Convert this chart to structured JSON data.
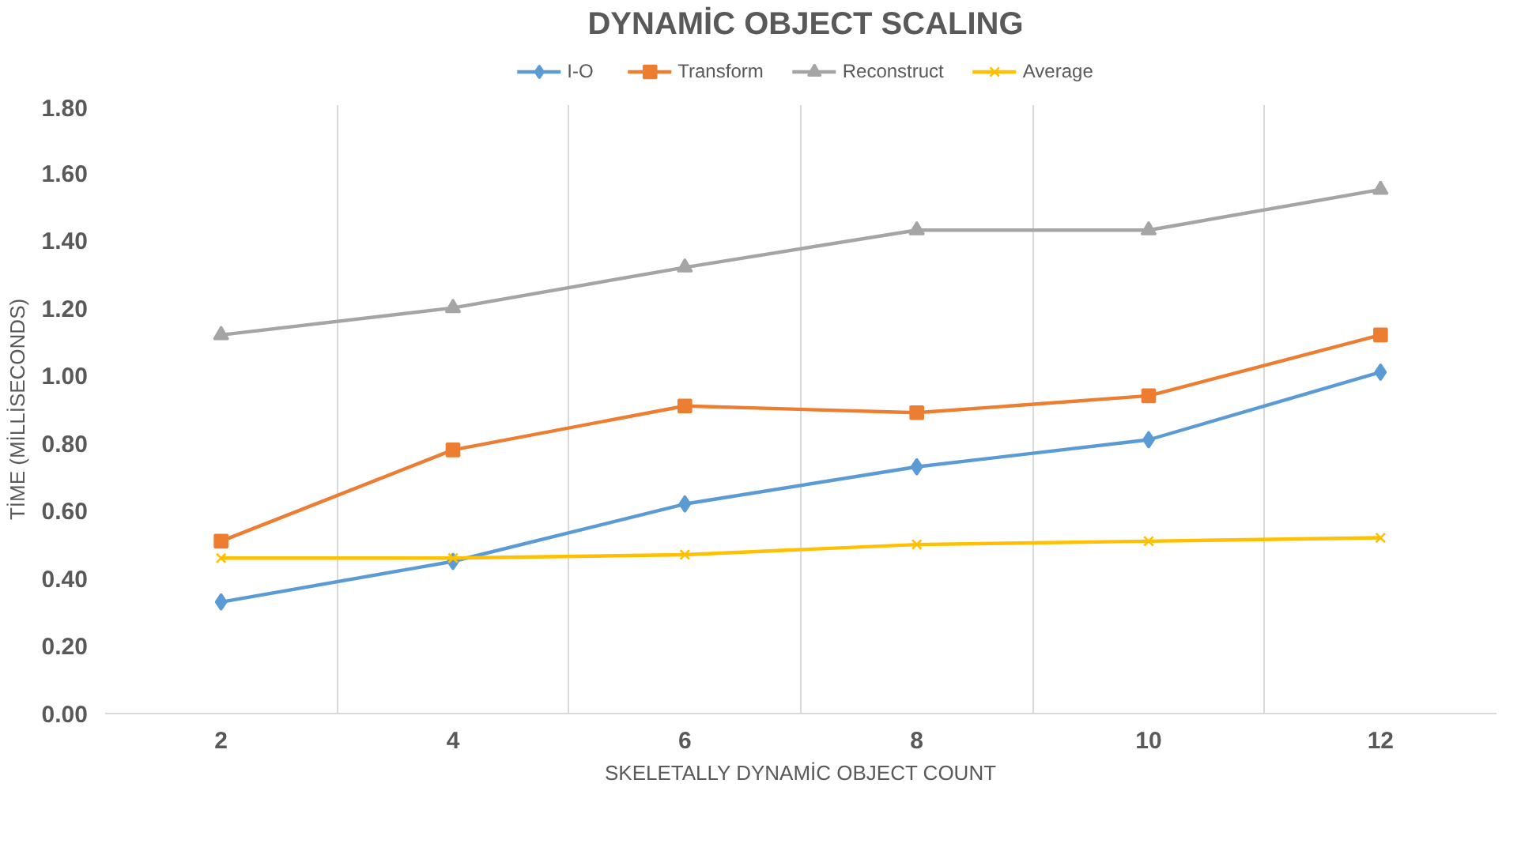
{
  "chart_data": {
    "type": "line",
    "title": "DYNAMİC OBJECT SCALING",
    "xlabel": "SKELETALLY DYNAMİC OBJECT COUNT",
    "ylabel": "TİME (MİLLİSECONDS)",
    "categories": [
      "2",
      "4",
      "6",
      "8",
      "10",
      "12"
    ],
    "series": [
      {
        "name": "I-O",
        "color": "#5b9bd5",
        "marker": "diamond",
        "values": [
          0.33,
          0.45,
          0.62,
          0.73,
          0.81,
          1.01
        ]
      },
      {
        "name": "Transform",
        "color": "#ed7d31",
        "marker": "square",
        "values": [
          0.51,
          0.78,
          0.91,
          0.89,
          0.94,
          1.12
        ]
      },
      {
        "name": "Reconstruct",
        "color": "#a5a5a5",
        "marker": "triangle",
        "values": [
          1.12,
          1.2,
          1.32,
          1.43,
          1.43,
          1.55
        ]
      },
      {
        "name": "Average",
        "color": "#ffc000",
        "marker": "cross",
        "values": [
          0.46,
          0.46,
          0.47,
          0.5,
          0.51,
          0.52
        ]
      }
    ],
    "ylim": [
      0,
      1.8
    ],
    "yticks": [
      {
        "value": 0,
        "label": "0.00"
      },
      {
        "value": 0.2,
        "label": "0.20"
      },
      {
        "value": 0.4,
        "label": "0.40"
      },
      {
        "value": 0.6,
        "label": "0.60"
      },
      {
        "value": 0.8,
        "label": "0.80"
      },
      {
        "value": 1.0,
        "label": "1.00"
      },
      {
        "value": 1.2,
        "label": "1.20"
      },
      {
        "value": 1.4,
        "label": "1.40"
      },
      {
        "value": 1.6,
        "label": "1.60"
      },
      {
        "value": 1.8,
        "label": "1.80"
      }
    ],
    "grid": "x",
    "legend": "top",
    "line_style": "solid"
  }
}
